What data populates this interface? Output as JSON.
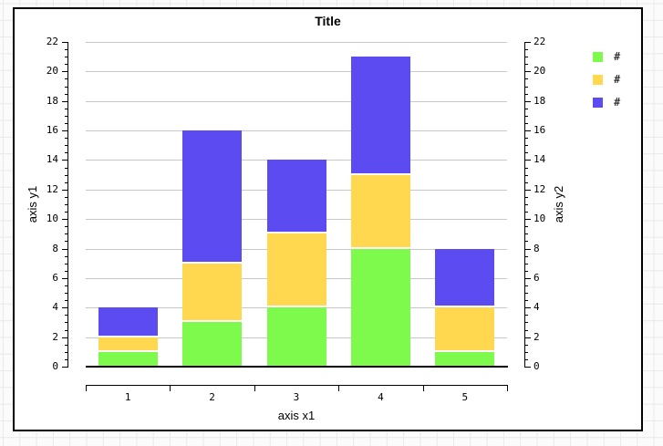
{
  "window": {
    "background_color": "#fbfbfb",
    "background_grid_line_color": "#e9e9e9"
  },
  "chart": {
    "title": "Title",
    "plot_background": "#ffffff",
    "gridline_color": "#c8c8c8",
    "axes": {
      "x": {
        "title": "axis x1",
        "categories": [
          "1",
          "2",
          "3",
          "4",
          "5"
        ]
      },
      "y_left": {
        "title": "axis y1",
        "min": 0,
        "max": 22,
        "major_step": 2,
        "minor_step": 0.5,
        "tick_labels": [
          "0",
          "2",
          "4",
          "6",
          "8",
          "10",
          "12",
          "14",
          "16",
          "18",
          "20",
          "22"
        ]
      },
      "y_right": {
        "title": "axis y2",
        "min": 0,
        "max": 22,
        "major_step": 2,
        "minor_step": 0.5,
        "tick_labels": [
          "0",
          "2",
          "4",
          "6",
          "8",
          "10",
          "12",
          "14",
          "16",
          "18",
          "20",
          "22"
        ]
      }
    },
    "legend": {
      "items": [
        {
          "label": "#",
          "color": "#7dfa4c"
        },
        {
          "label": "#",
          "color": "#ffd84f"
        },
        {
          "label": "#",
          "color": "#5c4bf0"
        }
      ]
    }
  },
  "chart_data": {
    "type": "bar",
    "stacked": true,
    "title": "Title",
    "xlabel": "axis x1",
    "ylabel_left": "axis y1",
    "ylabel_right": "axis y2",
    "categories": [
      "1",
      "2",
      "3",
      "4",
      "5"
    ],
    "series": [
      {
        "name": "#",
        "color": "#7dfa4c",
        "values": [
          1,
          3,
          4,
          8,
          1
        ]
      },
      {
        "name": "#",
        "color": "#ffd84f",
        "values": [
          1,
          4,
          5,
          5,
          3
        ]
      },
      {
        "name": "#",
        "color": "#5c4bf0",
        "values": [
          2,
          9,
          5,
          8,
          4
        ]
      }
    ],
    "stack_totals": [
      4,
      16,
      14,
      21,
      8
    ],
    "ylim": [
      0,
      22
    ],
    "grid": "horizontal-major",
    "legend_position": "top-right"
  }
}
